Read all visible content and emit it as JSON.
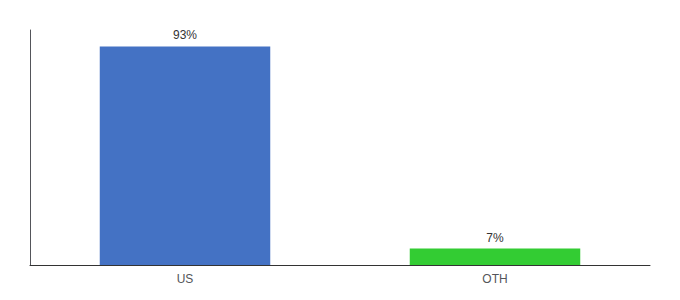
{
  "chart_data": {
    "type": "bar",
    "categories": [
      "US",
      "OTH"
    ],
    "values": [
      93,
      7
    ],
    "value_labels": [
      "93%",
      "7%"
    ],
    "colors": [
      "#4472C4",
      "#33CC33"
    ],
    "ylim": [
      0,
      100
    ],
    "data_labels": true,
    "tick_labels": "x",
    "grid": false
  }
}
